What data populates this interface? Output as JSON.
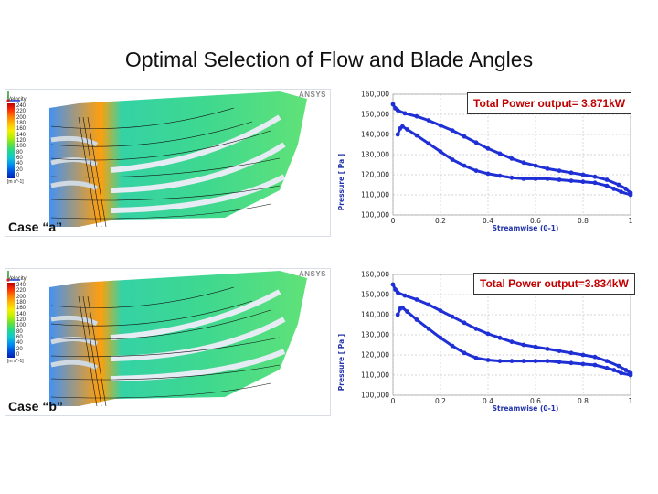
{
  "title": "Optimal Selection of Flow and Blade Angles",
  "colors": {
    "curve": "#1f2fd6",
    "power_text": "#c00000"
  },
  "cases": [
    {
      "label": "Case “a”",
      "contour": {
        "variable": "Velocity",
        "ticks": [
          "240",
          "220",
          "200",
          "180",
          "160",
          "140",
          "120",
          "100",
          "80",
          "60",
          "40",
          "20",
          "0"
        ],
        "unit": "[m s^-1]",
        "logo": "ANSYS"
      },
      "power": "Total Power output= 3.871kW",
      "chart_data": {
        "type": "scatter",
        "xlabel": "Streamwise (0-1)",
        "ylabel": "Pressure [ Pa ]",
        "xlim": [
          0,
          1
        ],
        "ylim": [
          100000,
          160000
        ],
        "xticks": [
          "0",
          "0.2",
          "0.4",
          "0.6",
          "0.8",
          "1"
        ],
        "yticks": [
          "100,000",
          "110,000",
          "120,000",
          "130,000",
          "140,000",
          "150,000",
          "160,000"
        ],
        "series": [
          {
            "x": [
              0.0,
              0.01,
              0.02,
              0.05,
              0.1,
              0.15,
              0.2,
              0.25,
              0.3,
              0.35,
              0.4,
              0.45,
              0.5,
              0.55,
              0.6,
              0.65,
              0.7,
              0.75,
              0.8,
              0.85,
              0.9,
              0.95,
              0.98,
              1.0
            ],
            "y": [
              155000,
              153000,
              152000,
              150500,
              149000,
              147000,
              144500,
              142000,
              139000,
              136000,
              133000,
              130500,
              128000,
              126000,
              124500,
              123000,
              122000,
              121000,
              120000,
              119000,
              117500,
              115000,
              113000,
              111000
            ]
          },
          {
            "x": [
              0.02,
              0.03,
              0.04,
              0.06,
              0.1,
              0.15,
              0.2,
              0.25,
              0.3,
              0.35,
              0.4,
              0.45,
              0.5,
              0.55,
              0.6,
              0.65,
              0.7,
              0.75,
              0.8,
              0.85,
              0.9,
              0.93,
              0.96,
              1.0
            ],
            "y": [
              140000,
              143000,
              144000,
              142500,
              139500,
              135500,
              131500,
              127500,
              124500,
              122000,
              120500,
              119500,
              118500,
              118000,
              118000,
              118000,
              117500,
              117000,
              116500,
              116000,
              114500,
              113000,
              111500,
              110000
            ]
          }
        ]
      }
    },
    {
      "label": "Case “b”",
      "contour": {
        "variable": "Velocity",
        "ticks": [
          "240",
          "220",
          "200",
          "180",
          "160",
          "140",
          "120",
          "100",
          "80",
          "60",
          "40",
          "20",
          "0"
        ],
        "unit": "[m s^-1]",
        "logo": "ANSYS"
      },
      "power": "Total Power output=3.834kW",
      "chart_data": {
        "type": "scatter",
        "xlabel": "Streamwise (0-1)",
        "ylabel": "Pressure [ Pa ]",
        "xlim": [
          0,
          1
        ],
        "ylim": [
          100000,
          160000
        ],
        "xticks": [
          "0",
          "0.2",
          "0.4",
          "0.6",
          "0.8",
          "1"
        ],
        "yticks": [
          "100,000",
          "110,000",
          "120,000",
          "130,000",
          "140,000",
          "150,000",
          "160,000"
        ],
        "series": [
          {
            "x": [
              0.0,
              0.01,
              0.02,
              0.05,
              0.1,
              0.15,
              0.2,
              0.25,
              0.3,
              0.35,
              0.4,
              0.45,
              0.5,
              0.55,
              0.6,
              0.65,
              0.7,
              0.75,
              0.8,
              0.85,
              0.9,
              0.95,
              0.98,
              1.0
            ],
            "y": [
              155000,
              152500,
              151000,
              149500,
              147500,
              145000,
              142000,
              139000,
              136000,
              133000,
              130500,
              128500,
              126500,
              125000,
              124000,
              123000,
              122000,
              121000,
              120000,
              119000,
              117000,
              114500,
              112500,
              111000
            ]
          },
          {
            "x": [
              0.02,
              0.03,
              0.04,
              0.06,
              0.1,
              0.15,
              0.2,
              0.25,
              0.3,
              0.35,
              0.4,
              0.45,
              0.5,
              0.55,
              0.6,
              0.65,
              0.7,
              0.75,
              0.8,
              0.85,
              0.9,
              0.93,
              0.96,
              1.0
            ],
            "y": [
              140000,
              143000,
              143500,
              141500,
              137500,
              133000,
              128500,
              124500,
              121000,
              118500,
              117500,
              117000,
              117000,
              117000,
              117000,
              117000,
              116500,
              116000,
              115500,
              115000,
              113500,
              112500,
              111000,
              110000
            ]
          }
        ]
      }
    }
  ]
}
